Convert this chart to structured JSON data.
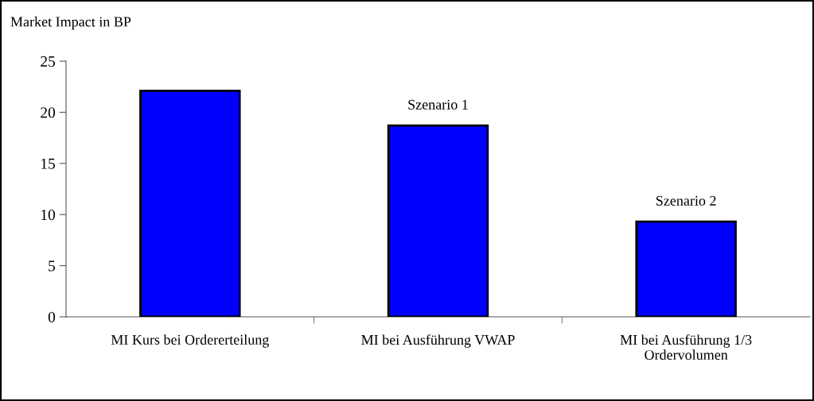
{
  "chart_data": {
    "type": "bar",
    "ylabel": "Market Impact in BP",
    "categories": [
      "MI Kurs bei Ordererteilung",
      "MI bei Ausführung VWAP",
      "MI bei Ausführung 1/3\nOrdervolumen"
    ],
    "values": [
      22.1,
      18.7,
      9.3
    ],
    "color": "#0000ff",
    "ylim": [
      0,
      25
    ],
    "yticks": [
      0,
      5,
      10,
      15,
      20,
      25
    ],
    "grid": false,
    "legend": false,
    "annotations": [
      {
        "text": "Szenario 1",
        "x": "MI bei Ausführung VWAP",
        "y": 18.7
      },
      {
        "text": "Szenario 2",
        "x": "MI bei Ausführung 1/3\nOrdervolumen",
        "y": 9.3
      }
    ]
  }
}
